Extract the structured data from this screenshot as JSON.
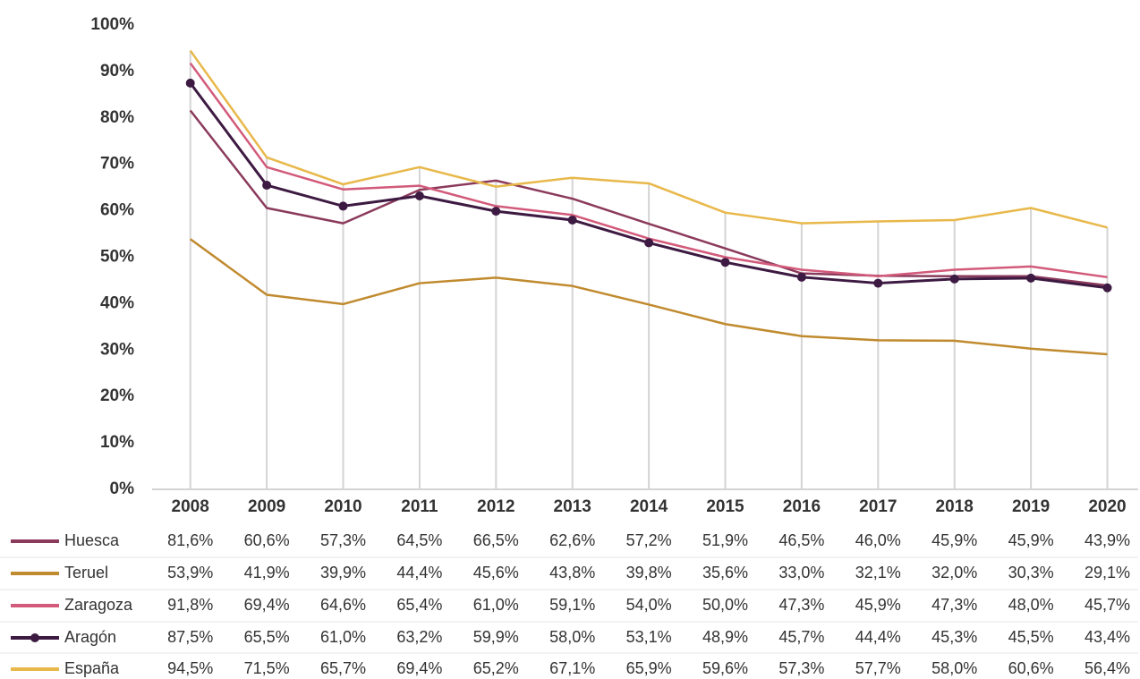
{
  "chart_data": {
    "type": "line",
    "categories": [
      "2008",
      "2009",
      "2010",
      "2011",
      "2012",
      "2013",
      "2014",
      "2015",
      "2016",
      "2017",
      "2018",
      "2019",
      "2020"
    ],
    "ylim": [
      0,
      100
    ],
    "yticks": [
      {
        "value": 0,
        "label": "0%"
      },
      {
        "value": 10,
        "label": "10%"
      },
      {
        "value": 20,
        "label": "20%"
      },
      {
        "value": 30,
        "label": "30%"
      },
      {
        "value": 40,
        "label": "40%"
      },
      {
        "value": 50,
        "label": "50%"
      },
      {
        "value": 60,
        "label": "60%"
      },
      {
        "value": 70,
        "label": "70%"
      },
      {
        "value": 80,
        "label": "80%"
      },
      {
        "value": 90,
        "label": "90%"
      },
      {
        "value": 100,
        "label": "100%"
      }
    ],
    "series": [
      {
        "name": "Huesca",
        "color": "#8b3a5c",
        "marker": false,
        "values": [
          81.6,
          60.6,
          57.3,
          64.5,
          66.5,
          62.6,
          57.2,
          51.9,
          46.5,
          46.0,
          45.9,
          45.9,
          43.9
        ],
        "value_labels": [
          "81,6%",
          "60,6%",
          "57,3%",
          "64,5%",
          "66,5%",
          "62,6%",
          "57,2%",
          "51,9%",
          "46,5%",
          "46,0%",
          "45,9%",
          "45,9%",
          "43,9%"
        ]
      },
      {
        "name": "Teruel",
        "color": "#c08a2e",
        "marker": false,
        "values": [
          53.9,
          41.9,
          39.9,
          44.4,
          45.6,
          43.8,
          39.8,
          35.6,
          33.0,
          32.1,
          32.0,
          30.3,
          29.1
        ],
        "value_labels": [
          "53,9%",
          "41,9%",
          "39,9%",
          "44,4%",
          "45,6%",
          "43,8%",
          "39,8%",
          "35,6%",
          "33,0%",
          "32,1%",
          "32,0%",
          "30,3%",
          "29,1%"
        ]
      },
      {
        "name": "Zaragoza",
        "color": "#d25a7a",
        "marker": false,
        "values": [
          91.8,
          69.4,
          64.6,
          65.4,
          61.0,
          59.1,
          54.0,
          50.0,
          47.3,
          45.9,
          47.3,
          48.0,
          45.7
        ],
        "value_labels": [
          "91,8%",
          "69,4%",
          "64,6%",
          "65,4%",
          "61,0%",
          "59,1%",
          "54,0%",
          "50,0%",
          "47,3%",
          "45,9%",
          "47,3%",
          "48,0%",
          "45,7%"
        ]
      },
      {
        "name": "Aragón",
        "color": "#3d1a42",
        "marker": true,
        "values": [
          87.5,
          65.5,
          61.0,
          63.2,
          59.9,
          58.0,
          53.1,
          48.9,
          45.7,
          44.4,
          45.3,
          45.5,
          43.4
        ],
        "value_labels": [
          "87,5%",
          "65,5%",
          "61,0%",
          "63,2%",
          "59,9%",
          "58,0%",
          "53,1%",
          "48,9%",
          "45,7%",
          "44,4%",
          "45,3%",
          "45,5%",
          "43,4%"
        ]
      },
      {
        "name": "España",
        "color": "#e8b84a",
        "marker": false,
        "values": [
          94.5,
          71.5,
          65.7,
          69.4,
          65.2,
          67.1,
          65.9,
          59.6,
          57.3,
          57.7,
          58.0,
          60.6,
          56.4
        ],
        "value_labels": [
          "94,5%",
          "71,5%",
          "65,7%",
          "69,4%",
          "65,2%",
          "67,1%",
          "65,9%",
          "59,6%",
          "57,3%",
          "57,7%",
          "58,0%",
          "60,6%",
          "56,4%"
        ]
      }
    ]
  }
}
